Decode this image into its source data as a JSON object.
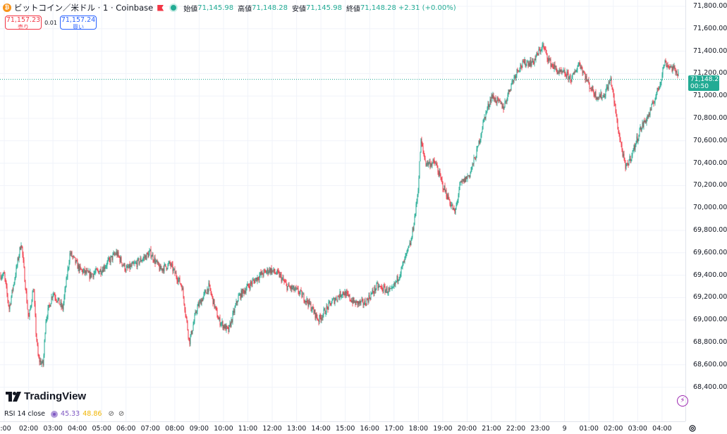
{
  "header": {
    "symbol": "ビットコイン／米ドル · 1 · Coinbase",
    "ohlc": [
      {
        "label": "始値",
        "value": "71,145.98"
      },
      {
        "label": "高値",
        "value": "71,148.28"
      },
      {
        "label": "安値",
        "value": "71,145.98"
      },
      {
        "label": "終値",
        "value": "71,148.28"
      }
    ],
    "change": "+2.31 (+0.00%)"
  },
  "trade": {
    "sell_price": "71,157.23",
    "sell_label": "売り",
    "spread": "0.01",
    "buy_price": "71,157.24",
    "buy_label": "買い"
  },
  "price_axis": {
    "labels": [
      "71,800.00",
      "71,600.00",
      "71,400.00",
      "71,200.00",
      "71,000.00",
      "70,800.00",
      "70,600.00",
      "70,400.00",
      "70,200.00",
      "70,000.00",
      "69,800.00",
      "69,600.00",
      "69,400.00",
      "69,200.00",
      "69,000.00",
      "68,800.00",
      "68,600.00",
      "68,400.00"
    ],
    "current_price": "71,148.28",
    "countdown": "00:50"
  },
  "time_axis": {
    "labels": [
      ":00",
      "02:00",
      "03:00",
      "04:00",
      "05:00",
      "06:00",
      "07:00",
      "08:00",
      "09:00",
      "10:00",
      "11:00",
      "12:00",
      "13:00",
      "14:00",
      "15:00",
      "16:00",
      "17:00",
      "18:00",
      "19:00",
      "20:00",
      "21:00",
      "22:00",
      "23:00",
      "9",
      "01:00",
      "02:00",
      "03:00",
      "04:00"
    ]
  },
  "indicator": {
    "name": "RSI 14 close",
    "value1": "45.33",
    "value2": "48.86"
  },
  "branding": {
    "logo": "TradingView"
  },
  "colors": {
    "up": "#22ab94",
    "down": "#f23645",
    "accent": "#2962ff"
  },
  "chart_data": {
    "type": "candlestick",
    "ylim": [
      68300,
      71900
    ],
    "timeframe": "1 minute",
    "anchors": [
      [
        0,
        69400
      ],
      [
        0.2,
        69100
      ],
      [
        0.7,
        69700
      ],
      [
        1.0,
        69000
      ],
      [
        1.2,
        69300
      ],
      [
        1.3,
        68900
      ],
      [
        1.4,
        68650
      ],
      [
        1.6,
        68600
      ],
      [
        1.7,
        69000
      ],
      [
        2.0,
        69250
      ],
      [
        2.4,
        69100
      ],
      [
        2.7,
        69600
      ],
      [
        3.1,
        69450
      ],
      [
        3.5,
        69400
      ],
      [
        4.0,
        69450
      ],
      [
        4.6,
        69600
      ],
      [
        5.0,
        69450
      ],
      [
        5.4,
        69500
      ],
      [
        6.0,
        69600
      ],
      [
        6.4,
        69450
      ],
      [
        6.8,
        69500
      ],
      [
        7.3,
        69300
      ],
      [
        7.6,
        68800
      ],
      [
        7.9,
        69100
      ],
      [
        8.4,
        69300
      ],
      [
        8.8,
        69000
      ],
      [
        9.2,
        68900
      ],
      [
        9.6,
        69200
      ],
      [
        10.0,
        69300
      ],
      [
        10.5,
        69400
      ],
      [
        10.9,
        69450
      ],
      [
        11.3,
        69400
      ],
      [
        11.6,
        69300
      ],
      [
        12.1,
        69250
      ],
      [
        12.5,
        69150
      ],
      [
        12.9,
        69000
      ],
      [
        13.4,
        69150
      ],
      [
        13.9,
        69250
      ],
      [
        14.4,
        69150
      ],
      [
        14.8,
        69150
      ],
      [
        15.3,
        69300
      ],
      [
        15.9,
        69250
      ],
      [
        16.3,
        69450
      ],
      [
        16.7,
        69700
      ],
      [
        16.9,
        70000
      ],
      [
        17.0,
        70200
      ],
      [
        17.1,
        70600
      ],
      [
        17.3,
        70400
      ],
      [
        17.7,
        70400
      ],
      [
        18.0,
        70200
      ],
      [
        18.3,
        70050
      ],
      [
        18.5,
        69950
      ],
      [
        18.7,
        70200
      ],
      [
        19.1,
        70300
      ],
      [
        19.4,
        70500
      ],
      [
        19.7,
        70800
      ],
      [
        20.0,
        71000
      ],
      [
        20.5,
        70900
      ],
      [
        20.8,
        71100
      ],
      [
        21.1,
        71250
      ],
      [
        21.4,
        71300
      ],
      [
        21.7,
        71300
      ],
      [
        22.1,
        71450
      ],
      [
        22.4,
        71300
      ],
      [
        22.8,
        71200
      ],
      [
        23.0,
        71200
      ],
      [
        23.3,
        71150
      ],
      [
        23.6,
        71300
      ],
      [
        24.0,
        71100
      ],
      [
        24.3,
        71000
      ],
      [
        24.6,
        71000
      ],
      [
        24.9,
        71150
      ],
      [
        25.2,
        70700
      ],
      [
        25.5,
        70350
      ],
      [
        25.8,
        70500
      ],
      [
        26.1,
        70700
      ],
      [
        26.5,
        70850
      ],
      [
        26.9,
        71100
      ],
      [
        27.1,
        71300
      ],
      [
        27.4,
        71250
      ],
      [
        27.7,
        71200
      ]
    ]
  }
}
